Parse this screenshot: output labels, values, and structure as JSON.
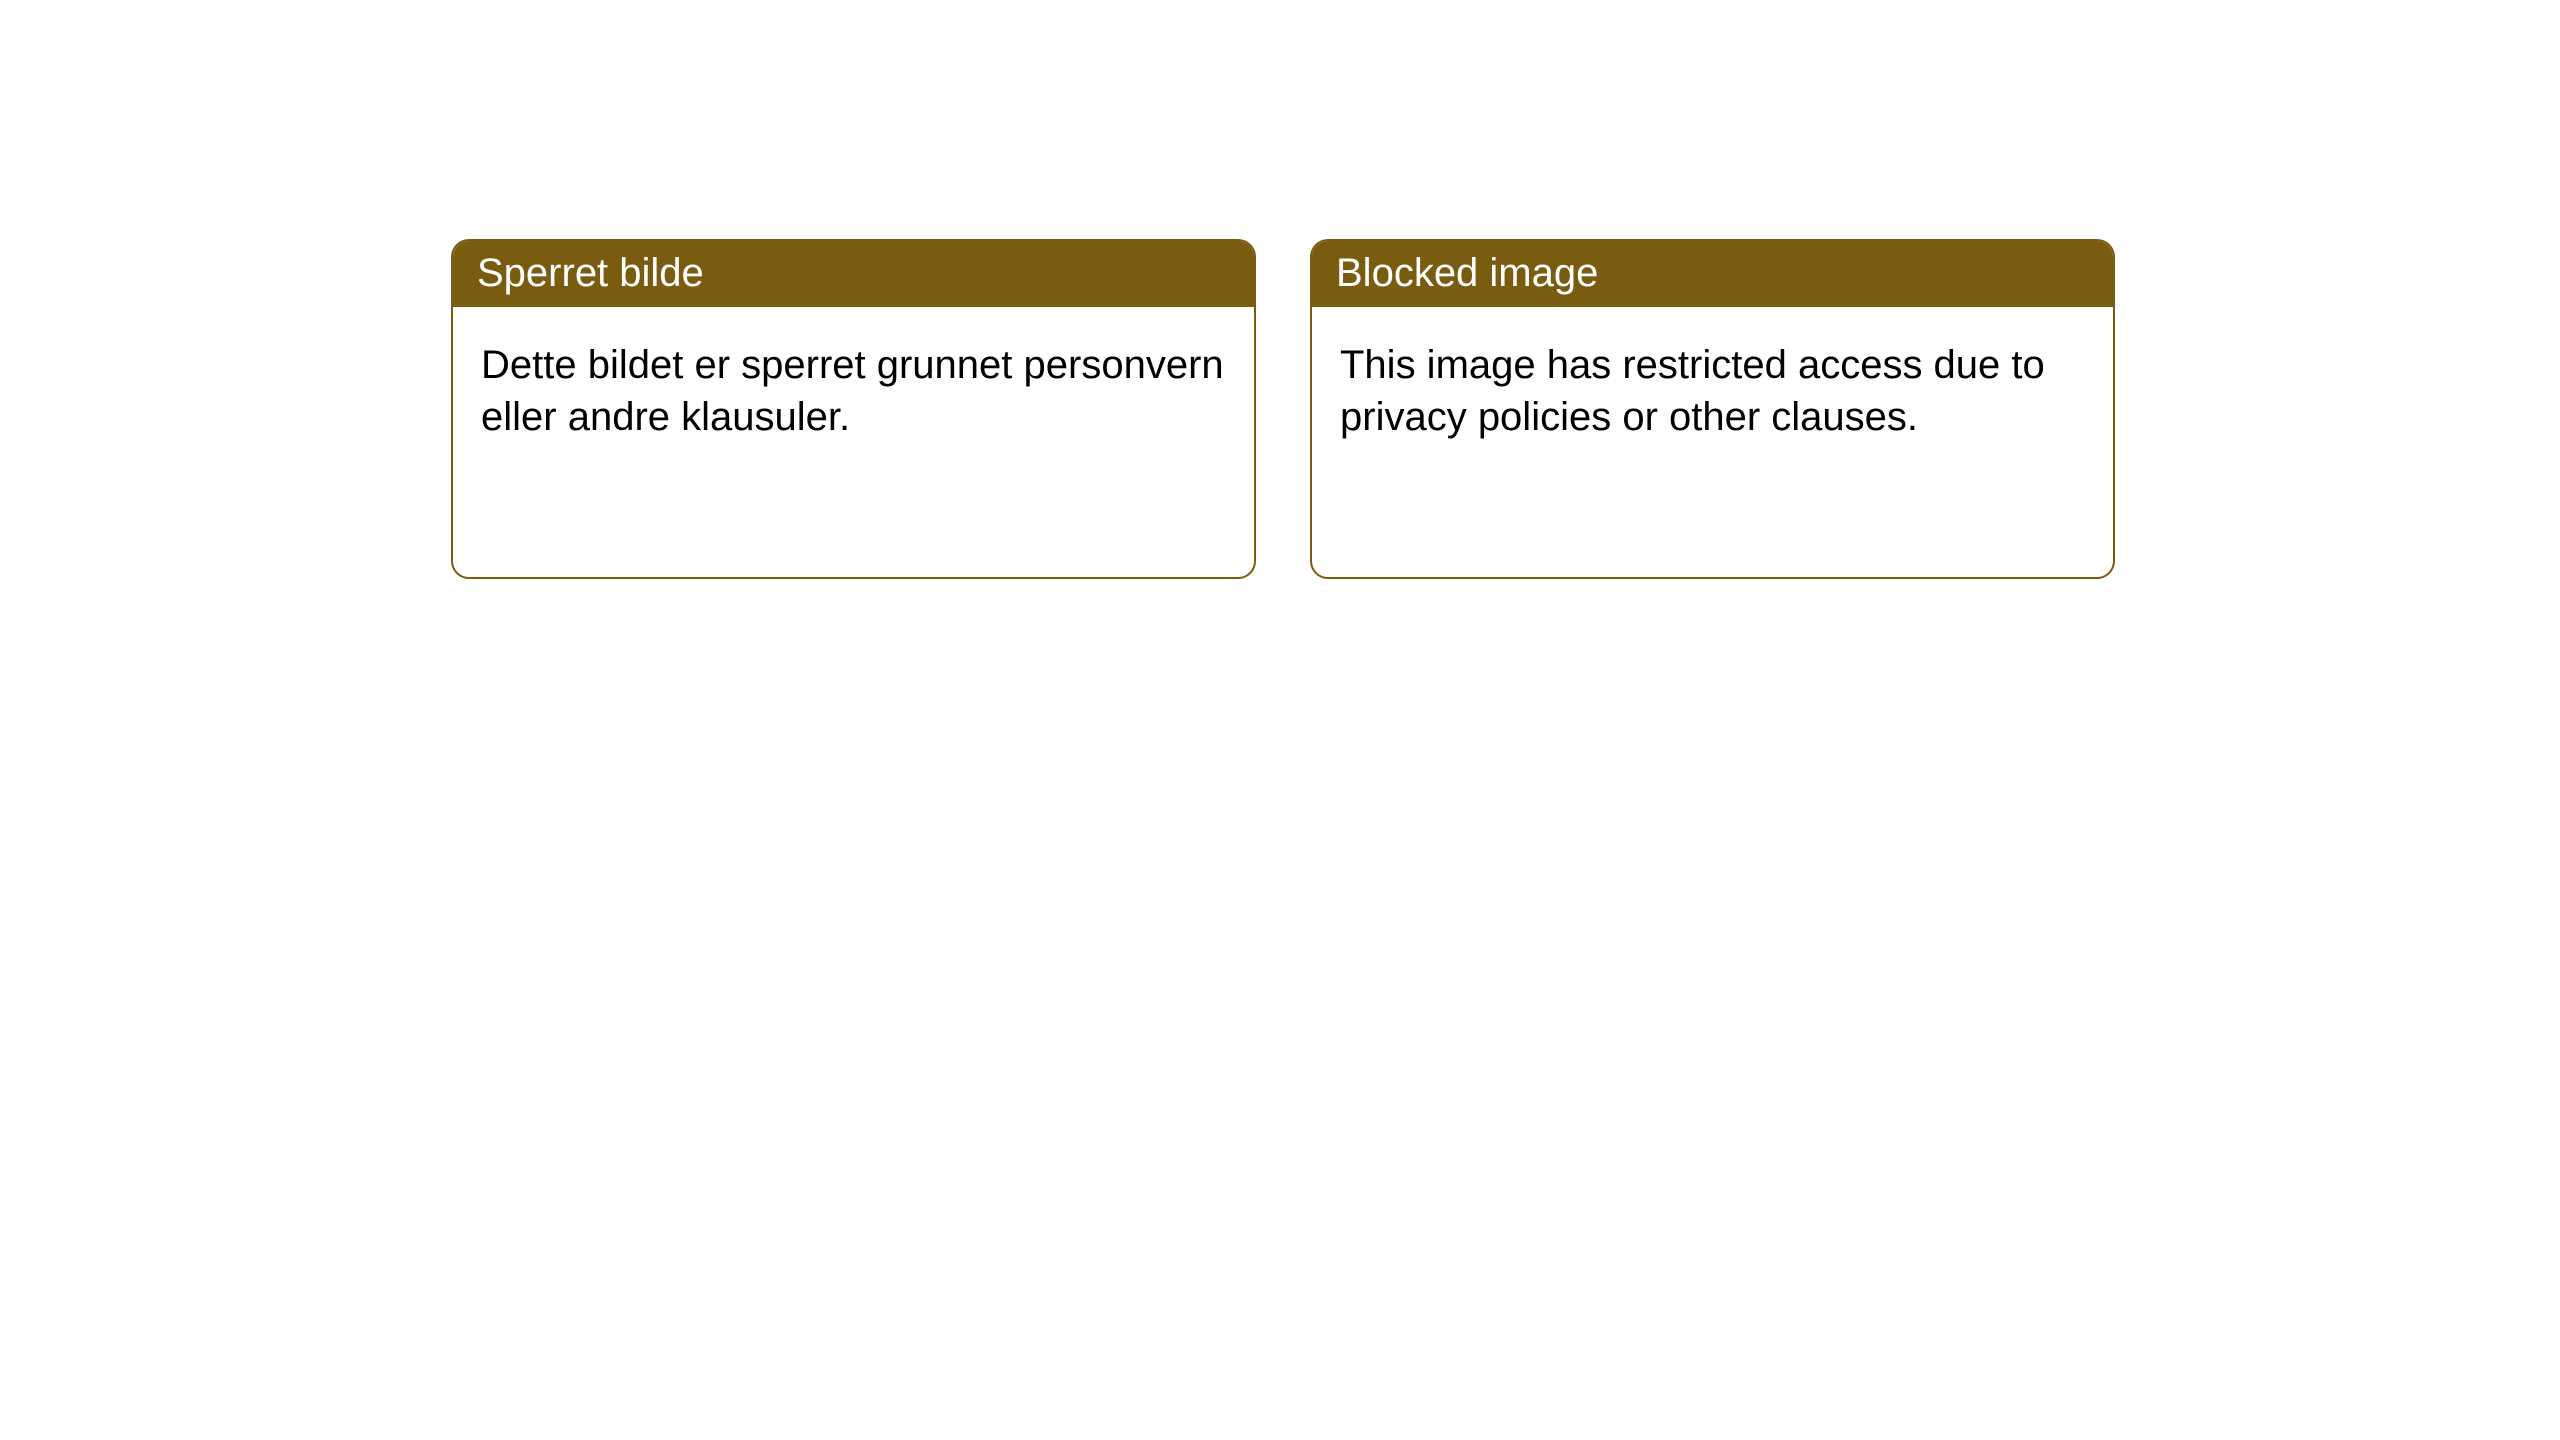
{
  "colors": {
    "accent": "#7a5c10",
    "header_text": "#ffffff",
    "body_text": "#000000",
    "card_bg": "#ffffff",
    "page_bg": "#ffffff"
  },
  "cards": [
    {
      "title": "Sperret bilde",
      "body": "Dette bildet er sperret grunnet personvern eller andre klausuler."
    },
    {
      "title": "Blocked image",
      "body": "This image has restricted access due to privacy policies or other clauses."
    }
  ]
}
